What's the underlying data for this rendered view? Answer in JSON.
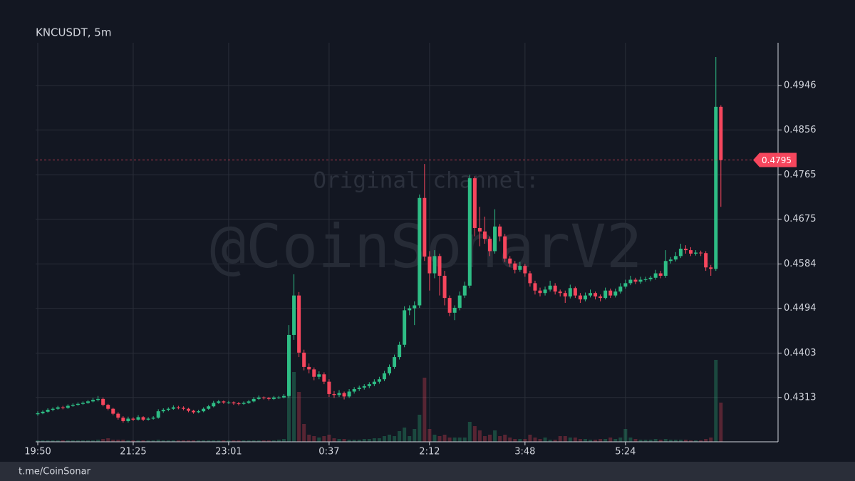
{
  "chart_data": {
    "type": "candlestick",
    "title": "KNCUSDT, 5m",
    "watermark": [
      "Original channel:",
      "@CoinSonarV2"
    ],
    "up_color": "#2ebd85",
    "down_color": "#f6465d",
    "grid": true,
    "ylim": [
      0.4223,
      0.5033
    ],
    "yticks": [
      0.4946,
      0.4856,
      0.4765,
      0.4675,
      0.4584,
      0.4494,
      0.4403,
      0.4313
    ],
    "categories": [
      "19:50",
      null,
      null,
      null,
      null,
      null,
      null,
      null,
      null,
      null,
      null,
      null,
      null,
      null,
      null,
      null,
      null,
      null,
      null,
      "21:25",
      null,
      null,
      null,
      null,
      null,
      null,
      null,
      null,
      null,
      null,
      null,
      null,
      null,
      null,
      null,
      null,
      null,
      null,
      "23:01",
      null,
      null,
      null,
      null,
      null,
      null,
      null,
      null,
      null,
      null,
      null,
      null,
      null,
      null,
      null,
      null,
      null,
      null,
      null,
      "0:37",
      null,
      null,
      null,
      null,
      null,
      null,
      null,
      null,
      null,
      null,
      null,
      null,
      null,
      null,
      null,
      null,
      null,
      null,
      null,
      "2:12",
      null,
      null,
      null,
      null,
      null,
      null,
      null,
      null,
      null,
      null,
      null,
      null,
      null,
      null,
      null,
      null,
      null,
      null,
      "3:48",
      null,
      null,
      null,
      null,
      null,
      null,
      null,
      null,
      null,
      null,
      null,
      null,
      null,
      null,
      null,
      null,
      null,
      null,
      null,
      "5:24",
      null,
      null,
      null,
      null,
      null,
      null,
      null,
      null,
      null,
      null,
      null,
      null,
      null,
      null,
      null,
      null,
      null,
      null,
      null
    ],
    "ohlc": [
      [
        0.4279,
        0.4285,
        0.4276,
        0.4281
      ],
      [
        0.4281,
        0.4287,
        0.4279,
        0.4284
      ],
      [
        0.4284,
        0.4291,
        0.4282,
        0.4288
      ],
      [
        0.4288,
        0.4293,
        0.4285,
        0.429
      ],
      [
        0.429,
        0.4296,
        0.4288,
        0.4293
      ],
      [
        0.4293,
        0.4296,
        0.4289,
        0.4292
      ],
      [
        0.4292,
        0.4299,
        0.429,
        0.4296
      ],
      [
        0.4296,
        0.4301,
        0.4294,
        0.4298
      ],
      [
        0.4298,
        0.4303,
        0.4296,
        0.43
      ],
      [
        0.43,
        0.4305,
        0.4298,
        0.4302
      ],
      [
        0.4302,
        0.4308,
        0.43,
        0.4305
      ],
      [
        0.4305,
        0.4312,
        0.4303,
        0.4308
      ],
      [
        0.4308,
        0.4316,
        0.4305,
        0.431
      ],
      [
        0.431,
        0.4313,
        0.4295,
        0.4298
      ],
      [
        0.4298,
        0.43,
        0.4287,
        0.429
      ],
      [
        0.429,
        0.4292,
        0.4277,
        0.428
      ],
      [
        0.428,
        0.4283,
        0.4268,
        0.4272
      ],
      [
        0.4272,
        0.4275,
        0.4262,
        0.4265
      ],
      [
        0.4265,
        0.4274,
        0.4262,
        0.427
      ],
      [
        0.427,
        0.4273,
        0.4265,
        0.4268
      ],
      [
        0.4268,
        0.4277,
        0.4266,
        0.4273
      ],
      [
        0.4273,
        0.4275,
        0.4265,
        0.4268
      ],
      [
        0.4268,
        0.4273,
        0.4266,
        0.427
      ],
      [
        0.427,
        0.4275,
        0.4268,
        0.4272
      ],
      [
        0.4272,
        0.4289,
        0.427,
        0.4285
      ],
      [
        0.4285,
        0.4291,
        0.4282,
        0.4288
      ],
      [
        0.4288,
        0.4293,
        0.4285,
        0.429
      ],
      [
        0.429,
        0.4297,
        0.4288,
        0.4293
      ],
      [
        0.4293,
        0.4296,
        0.4289,
        0.4292
      ],
      [
        0.4292,
        0.4295,
        0.4287,
        0.429
      ],
      [
        0.429,
        0.4292,
        0.4283,
        0.4286
      ],
      [
        0.4286,
        0.4288,
        0.428,
        0.4283
      ],
      [
        0.4283,
        0.4288,
        0.4281,
        0.4285
      ],
      [
        0.4285,
        0.4293,
        0.4283,
        0.429
      ],
      [
        0.429,
        0.4298,
        0.4288,
        0.4295
      ],
      [
        0.4295,
        0.4306,
        0.4293,
        0.4302
      ],
      [
        0.4302,
        0.4308,
        0.43,
        0.4305
      ],
      [
        0.4305,
        0.4307,
        0.43,
        0.4303
      ],
      [
        0.4303,
        0.4306,
        0.43,
        0.4303
      ],
      [
        0.4303,
        0.4305,
        0.4298,
        0.4301
      ],
      [
        0.4301,
        0.4304,
        0.4297,
        0.43
      ],
      [
        0.43,
        0.4305,
        0.4298,
        0.4302
      ],
      [
        0.4302,
        0.4308,
        0.43,
        0.4305
      ],
      [
        0.4305,
        0.4314,
        0.4303,
        0.431
      ],
      [
        0.431,
        0.4317,
        0.4308,
        0.4313
      ],
      [
        0.4313,
        0.4315,
        0.4309,
        0.4312
      ],
      [
        0.4312,
        0.4314,
        0.4307,
        0.431
      ],
      [
        0.431,
        0.4316,
        0.4308,
        0.4313
      ],
      [
        0.4313,
        0.4316,
        0.431,
        0.4313
      ],
      [
        0.4313,
        0.432,
        0.4311,
        0.4316
      ],
      [
        0.4316,
        0.446,
        0.4312,
        0.444
      ],
      [
        0.444,
        0.4563,
        0.443,
        0.452
      ],
      [
        0.452,
        0.4527,
        0.4395,
        0.4404
      ],
      [
        0.4404,
        0.441,
        0.4368,
        0.4375
      ],
      [
        0.4375,
        0.4382,
        0.4362,
        0.437
      ],
      [
        0.437,
        0.4374,
        0.4348,
        0.4355
      ],
      [
        0.4355,
        0.4366,
        0.435,
        0.436
      ],
      [
        0.436,
        0.4364,
        0.434,
        0.4345
      ],
      [
        0.4345,
        0.435,
        0.4314,
        0.432
      ],
      [
        0.432,
        0.4326,
        0.4312,
        0.4318
      ],
      [
        0.4318,
        0.4328,
        0.4314,
        0.4322
      ],
      [
        0.4322,
        0.4325,
        0.4309,
        0.4315
      ],
      [
        0.4315,
        0.433,
        0.4312,
        0.4325
      ],
      [
        0.4325,
        0.4334,
        0.4321,
        0.433
      ],
      [
        0.433,
        0.4337,
        0.4326,
        0.4333
      ],
      [
        0.4333,
        0.434,
        0.4329,
        0.4336
      ],
      [
        0.4336,
        0.4344,
        0.4332,
        0.434
      ],
      [
        0.434,
        0.435,
        0.4336,
        0.4345
      ],
      [
        0.4345,
        0.4355,
        0.4341,
        0.435
      ],
      [
        0.435,
        0.4367,
        0.4346,
        0.4362
      ],
      [
        0.4362,
        0.438,
        0.4358,
        0.4375
      ],
      [
        0.4375,
        0.44,
        0.4371,
        0.4395
      ],
      [
        0.4395,
        0.4426,
        0.439,
        0.442
      ],
      [
        0.442,
        0.4498,
        0.4415,
        0.449
      ],
      [
        0.449,
        0.45,
        0.448,
        0.4494
      ],
      [
        0.4494,
        0.4508,
        0.446,
        0.45
      ],
      [
        0.45,
        0.4725,
        0.4495,
        0.4718
      ],
      [
        0.4718,
        0.4787,
        0.459,
        0.4599
      ],
      [
        0.4599,
        0.461,
        0.453,
        0.4565
      ],
      [
        0.4565,
        0.4612,
        0.4555,
        0.46
      ],
      [
        0.46,
        0.4605,
        0.452,
        0.456
      ],
      [
        0.456,
        0.457,
        0.45,
        0.4515
      ],
      [
        0.4515,
        0.452,
        0.4478,
        0.4485
      ],
      [
        0.4485,
        0.45,
        0.447,
        0.4495
      ],
      [
        0.4495,
        0.4528,
        0.449,
        0.452
      ],
      [
        0.452,
        0.4548,
        0.4515,
        0.454
      ],
      [
        0.454,
        0.4765,
        0.4535,
        0.4758
      ],
      [
        0.4758,
        0.4762,
        0.464,
        0.4657
      ],
      [
        0.4657,
        0.47,
        0.462,
        0.465
      ],
      [
        0.465,
        0.468,
        0.4625,
        0.4635
      ],
      [
        0.4635,
        0.464,
        0.46,
        0.461
      ],
      [
        0.461,
        0.4695,
        0.4605,
        0.466
      ],
      [
        0.466,
        0.4665,
        0.463,
        0.464
      ],
      [
        0.464,
        0.4645,
        0.4588,
        0.4595
      ],
      [
        0.4595,
        0.46,
        0.4578,
        0.4585
      ],
      [
        0.4585,
        0.459,
        0.4565,
        0.4572
      ],
      [
        0.4572,
        0.4588,
        0.4568,
        0.458
      ],
      [
        0.458,
        0.4584,
        0.4558,
        0.4565
      ],
      [
        0.4565,
        0.457,
        0.4538,
        0.4545
      ],
      [
        0.4545,
        0.455,
        0.4522,
        0.453
      ],
      [
        0.453,
        0.4536,
        0.4518,
        0.4525
      ],
      [
        0.4525,
        0.4538,
        0.452,
        0.4532
      ],
      [
        0.4532,
        0.455,
        0.4528,
        0.454
      ],
      [
        0.454,
        0.4545,
        0.4522,
        0.4528
      ],
      [
        0.4528,
        0.4532,
        0.4518,
        0.4525
      ],
      [
        0.4525,
        0.453,
        0.4505,
        0.4518
      ],
      [
        0.4518,
        0.4542,
        0.4514,
        0.4535
      ],
      [
        0.4535,
        0.4538,
        0.4515,
        0.452
      ],
      [
        0.452,
        0.4525,
        0.4505,
        0.4512
      ],
      [
        0.4512,
        0.4526,
        0.4508,
        0.452
      ],
      [
        0.452,
        0.4532,
        0.4516,
        0.4525
      ],
      [
        0.4525,
        0.4528,
        0.4512,
        0.4518
      ],
      [
        0.4518,
        0.4522,
        0.4508,
        0.4515
      ],
      [
        0.4515,
        0.4536,
        0.4512,
        0.453
      ],
      [
        0.453,
        0.4534,
        0.4515,
        0.452
      ],
      [
        0.452,
        0.4534,
        0.4516,
        0.4528
      ],
      [
        0.4528,
        0.4545,
        0.4524,
        0.4538
      ],
      [
        0.4538,
        0.4552,
        0.4534,
        0.4545
      ],
      [
        0.4545,
        0.456,
        0.4541,
        0.4552
      ],
      [
        0.4552,
        0.4556,
        0.4543,
        0.4548
      ],
      [
        0.4548,
        0.4558,
        0.4544,
        0.4552
      ],
      [
        0.4552,
        0.4558,
        0.4548,
        0.4553
      ],
      [
        0.4553,
        0.456,
        0.4549,
        0.4556
      ],
      [
        0.4556,
        0.4572,
        0.4552,
        0.4565
      ],
      [
        0.4565,
        0.457,
        0.4555,
        0.456
      ],
      [
        0.456,
        0.4612,
        0.4556,
        0.459
      ],
      [
        0.459,
        0.4598,
        0.4585,
        0.4593
      ],
      [
        0.4593,
        0.4608,
        0.4589,
        0.46
      ],
      [
        0.46,
        0.4625,
        0.4596,
        0.4615
      ],
      [
        0.4615,
        0.4622,
        0.4605,
        0.4612
      ],
      [
        0.4612,
        0.4618,
        0.46,
        0.4605
      ],
      [
        0.4605,
        0.4612,
        0.4601,
        0.4607
      ],
      [
        0.4607,
        0.4611,
        0.46,
        0.4606
      ],
      [
        0.4606,
        0.461,
        0.457,
        0.4577
      ],
      [
        0.4577,
        0.4582,
        0.456,
        0.4574
      ],
      [
        0.4574,
        0.5004,
        0.457,
        0.4903
      ],
      [
        0.4903,
        0.4906,
        0.47,
        0.4795
      ]
    ],
    "volume": [
      2,
      2,
      2,
      2,
      2,
      2,
      2,
      2,
      2,
      2,
      2,
      2,
      3,
      4,
      5,
      3,
      3,
      3,
      2,
      2,
      2,
      2,
      2,
      2,
      3,
      2,
      2,
      2,
      2,
      2,
      2,
      2,
      2,
      2,
      2,
      2,
      2,
      2,
      2,
      2,
      2,
      2,
      2,
      2,
      2,
      2,
      2,
      2,
      3,
      4,
      72,
      98,
      70,
      25,
      10,
      8,
      6,
      8,
      10,
      5,
      4,
      4,
      3,
      3,
      3,
      4,
      4,
      5,
      5,
      8,
      10,
      8,
      15,
      20,
      8,
      18,
      38,
      90,
      18,
      10,
      8,
      10,
      6,
      6,
      6,
      6,
      28,
      22,
      16,
      8,
      10,
      16,
      8,
      10,
      6,
      4,
      4,
      4,
      10,
      6,
      4,
      6,
      3,
      3,
      8,
      8,
      6,
      6,
      4,
      4,
      3,
      3,
      4,
      4,
      6,
      4,
      6,
      18,
      6,
      4,
      3,
      3,
      3,
      4,
      3,
      4,
      3,
      3,
      3,
      3,
      2,
      2,
      2,
      4,
      6,
      115,
      55
    ]
  },
  "footer": "t.me/CoinSonar"
}
